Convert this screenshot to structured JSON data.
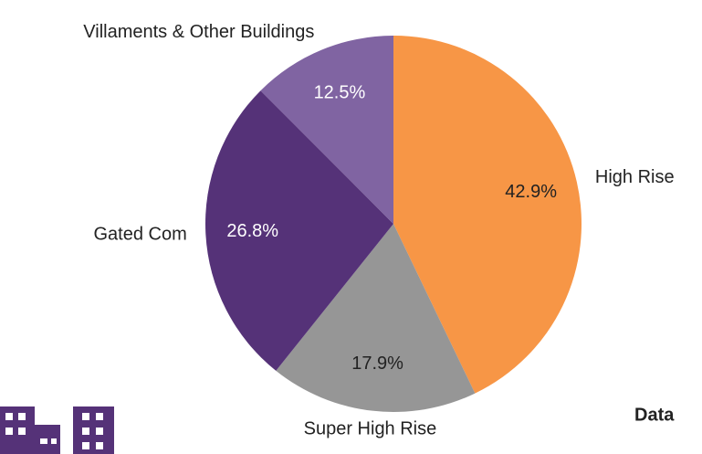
{
  "chart_data": {
    "type": "pie",
    "categories": [
      "High Rise",
      "Super High Rise",
      "Gated Com",
      "Villaments & Other Buildings"
    ],
    "values": [
      42.9,
      17.9,
      26.8,
      12.5
    ],
    "value_labels": [
      "42.9%",
      "17.9%",
      "26.8%",
      "12.5%"
    ],
    "colors": [
      "#F79646",
      "#969696",
      "#553278",
      "#8064A2"
    ]
  },
  "caption": "Data"
}
